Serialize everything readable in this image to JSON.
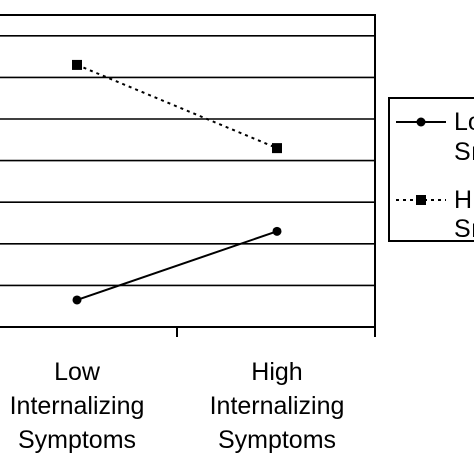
{
  "chart_data": {
    "type": "line",
    "categories": [
      [
        "Low",
        "Internalizing",
        "Symptoms"
      ],
      [
        "High",
        "Internalizing",
        "Symptoms"
      ]
    ],
    "ylim": [
      0,
      7.5
    ],
    "grid": true,
    "legend_position": "right",
    "series": [
      {
        "legend_lines": [
          "Lo",
          "Sı"
        ],
        "values": [
          0.65,
          2.3
        ],
        "line_style": "solid",
        "marker": "circle",
        "color": "#000000"
      },
      {
        "legend_lines": [
          "H",
          "Sı"
        ],
        "values": [
          6.3,
          4.3
        ],
        "line_style": "dotted",
        "marker": "square",
        "color": "#000000"
      }
    ]
  }
}
